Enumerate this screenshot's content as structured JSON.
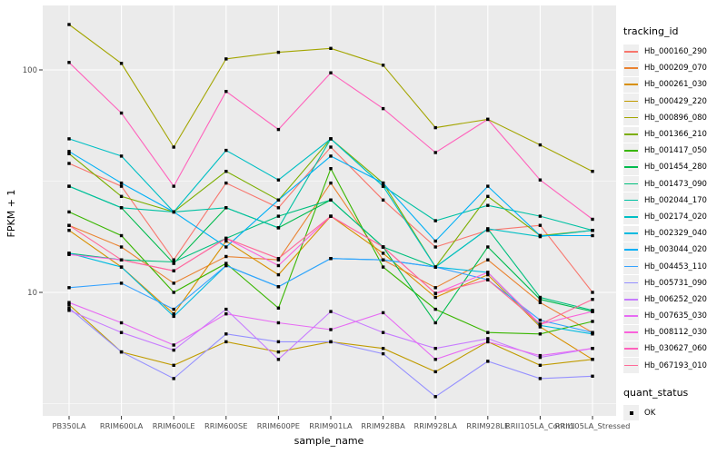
{
  "figure": {
    "background": "#FFFFFF",
    "panel_bg": "#EBEBEB",
    "grid_color": "#FFFFFF",
    "tick_color": "#333333",
    "axis_text_color": "#4D4D4D",
    "key_bg": "#EFEFEF"
  },
  "chart_data": {
    "type": "line",
    "title": "",
    "xlabel": "sample_name",
    "ylabel": "FPKM + 1",
    "y_scale": "log10",
    "ylim": [
      2.79,
      195
    ],
    "y_ticks": [
      100,
      10
    ],
    "y_minor_ticks": [
      31.62,
      3.162
    ],
    "grid": true,
    "legend_position": "right",
    "categories": [
      "PB350LA",
      "RRIM600LA",
      "RRIM600LE",
      "RRIM600SE",
      "RRIM600PE",
      "RRIM901LA",
      "RRIM928BA",
      "RRIM928LA",
      "RRIM928LE",
      "RRII105LA_Control",
      "RRII105LA_Stressed"
    ],
    "series": [
      {
        "name": "Hb_000160_290",
        "color": "#F8766D",
        "values": [
          38,
          30,
          14,
          31,
          24,
          45,
          26,
          16,
          19,
          20,
          10
        ]
      },
      {
        "name": "Hb_000209_070",
        "color": "#EA8331",
        "values": [
          20,
          16,
          11,
          14.5,
          14,
          31,
          14,
          10.5,
          14,
          9,
          6.6
        ]
      },
      {
        "name": "Hb_000261_030",
        "color": "#D89000",
        "values": [
          19,
          13,
          8,
          17,
          12,
          22,
          15,
          9.5,
          12,
          7,
          5
        ]
      },
      {
        "name": "Hb_000429_220",
        "color": "#C09B00",
        "values": [
          8.8,
          5.4,
          4.7,
          6,
          5.4,
          6,
          5.6,
          4.4,
          6,
          4.7,
          5
        ]
      },
      {
        "name": "Hb_000896_080",
        "color": "#A3A500",
        "values": [
          160,
          107,
          45,
          112,
          120,
          125,
          105,
          55,
          60,
          46,
          35
        ]
      },
      {
        "name": "Hb_001366_210",
        "color": "#7CAE00",
        "values": [
          42,
          27,
          23,
          35,
          26,
          49,
          31,
          13,
          27,
          18,
          19
        ]
      },
      {
        "name": "Hb_001417_050",
        "color": "#39B600",
        "values": [
          23,
          18,
          10,
          13.5,
          8.5,
          36,
          13,
          8.4,
          6.6,
          6.5,
          7.4
        ]
      },
      {
        "name": "Hb_001454_280",
        "color": "#00BB4E",
        "values": [
          30,
          24,
          13.5,
          24,
          19.5,
          26,
          16,
          7.3,
          16,
          9.3,
          8.2
        ]
      },
      {
        "name": "Hb_001473_090",
        "color": "#00BF7D",
        "values": [
          15,
          14,
          13.7,
          17.5,
          22,
          26,
          16,
          13,
          19.3,
          9.5,
          8.3
        ]
      },
      {
        "name": "Hb_002044_170",
        "color": "#00C1A3",
        "values": [
          30,
          24,
          23,
          24,
          19.5,
          49,
          30,
          21,
          24.6,
          22,
          19
        ]
      },
      {
        "name": "Hb_002174_020",
        "color": "#00BFC4",
        "values": [
          49,
          41,
          23,
          43.5,
          32,
          49,
          30,
          13,
          19.3,
          17.8,
          19
        ]
      },
      {
        "name": "Hb_002329_040",
        "color": "#00BAE0",
        "values": [
          15,
          13,
          7.8,
          13.2,
          10.6,
          14.2,
          14,
          13,
          12.3,
          7.1,
          6.5
        ]
      },
      {
        "name": "Hb_003044_020",
        "color": "#00B0F6",
        "values": [
          43,
          31,
          23,
          16,
          26,
          41,
          31,
          17,
          30,
          18,
          18
        ]
      },
      {
        "name": "Hb_004453_110",
        "color": "#35A2FF",
        "values": [
          10.5,
          11,
          8.4,
          13.2,
          10.6,
          14.2,
          14,
          13,
          11.4,
          7.5,
          6.6
        ]
      },
      {
        "name": "Hb_005731_090",
        "color": "#9590FF",
        "values": [
          8.5,
          5.4,
          4.1,
          6.5,
          6,
          6,
          5.3,
          3.4,
          4.9,
          4.1,
          4.2
        ]
      },
      {
        "name": "Hb_006252_020",
        "color": "#C77CFF",
        "values": [
          8.3,
          6.6,
          5.5,
          8.4,
          5,
          8.2,
          6.6,
          5.6,
          6.2,
          5.1,
          5.6
        ]
      },
      {
        "name": "Hb_007635_030",
        "color": "#E76BF3",
        "values": [
          9,
          7.3,
          5.8,
          8,
          7.3,
          6.8,
          8.1,
          5,
          6,
          5.2,
          5.6
        ]
      },
      {
        "name": "Hb_008112_030",
        "color": "#FA62DB",
        "values": [
          14.8,
          14,
          12.5,
          17.5,
          13.2,
          22,
          16,
          9.9,
          12.3,
          7.2,
          8.2
        ]
      },
      {
        "name": "Hb_030627_060",
        "color": "#FF62BC",
        "values": [
          108,
          64,
          30,
          80,
          54,
          97,
          67,
          42.5,
          60,
          32,
          21.3
        ]
      },
      {
        "name": "Hb_067193_010",
        "color": "#FF6A98",
        "values": [
          20,
          14,
          12.5,
          17.5,
          14.2,
          22,
          16,
          9.9,
          11.4,
          7.2,
          9.3
        ]
      }
    ],
    "marker": {
      "shape": "square",
      "color": "#000000"
    }
  },
  "legend": {
    "tracking_title": "tracking_id",
    "quant_title": "quant_status",
    "quant_label": "OK"
  }
}
